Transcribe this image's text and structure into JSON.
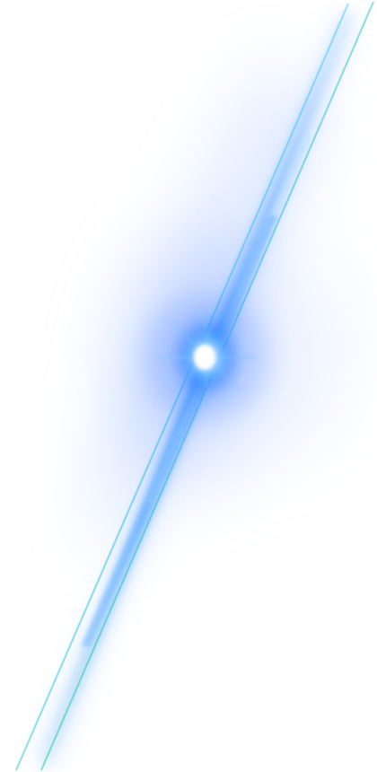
{
  "image": {
    "subject": "light-streak-lens-flare-icon",
    "background_color": "#ffffff",
    "colors": {
      "haze": "#c9dcff",
      "haze_deep": "#7aa7ff",
      "beam_core": "#4aa8ff",
      "beam_edge_cyan": "#33d0e8",
      "beam_edge_teal": "#2ec9a7",
      "flare_center": "#e8fbff",
      "flare_glow": "#2f8cff",
      "flare_outer": "#0f5cff"
    }
  }
}
